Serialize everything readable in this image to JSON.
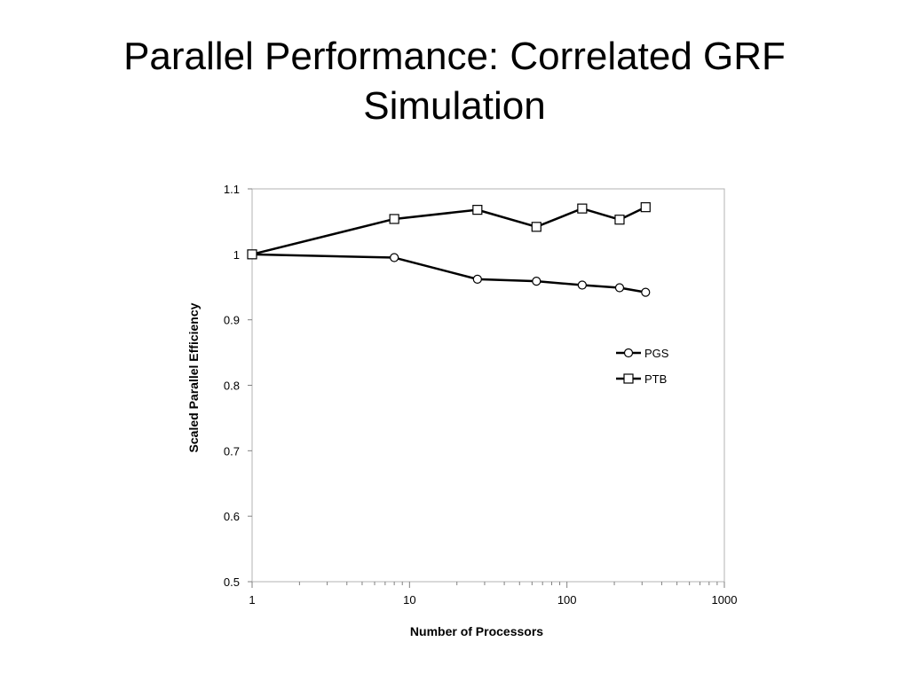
{
  "slide": {
    "title": "Parallel Performance: Correlated GRF Simulation"
  },
  "chart_data": {
    "type": "line",
    "title": "",
    "xlabel": "Number of Processors",
    "ylabel": "Scaled Parallel Efficiency",
    "x_scale": "log",
    "xlim": [
      1,
      1000
    ],
    "ylim": [
      0.5,
      1.1
    ],
    "x_ticks": [
      "1",
      "10",
      "100",
      "1000"
    ],
    "y_ticks": [
      "0.5",
      "0.6",
      "0.7",
      "0.8",
      "0.9",
      "1",
      "1.1"
    ],
    "grid": false,
    "legend_position": "right",
    "series": [
      {
        "name": "PGS",
        "marker": "circle",
        "color": "#000000",
        "x": [
          1,
          8,
          27,
          64,
          125,
          216,
          316
        ],
        "y": [
          1.0,
          0.995,
          0.962,
          0.959,
          0.953,
          0.949,
          0.942
        ]
      },
      {
        "name": "PTB",
        "marker": "square",
        "color": "#000000",
        "x": [
          1,
          8,
          27,
          64,
          125,
          216,
          316
        ],
        "y": [
          1.0,
          1.054,
          1.068,
          1.042,
          1.07,
          1.053,
          1.072
        ]
      }
    ]
  }
}
